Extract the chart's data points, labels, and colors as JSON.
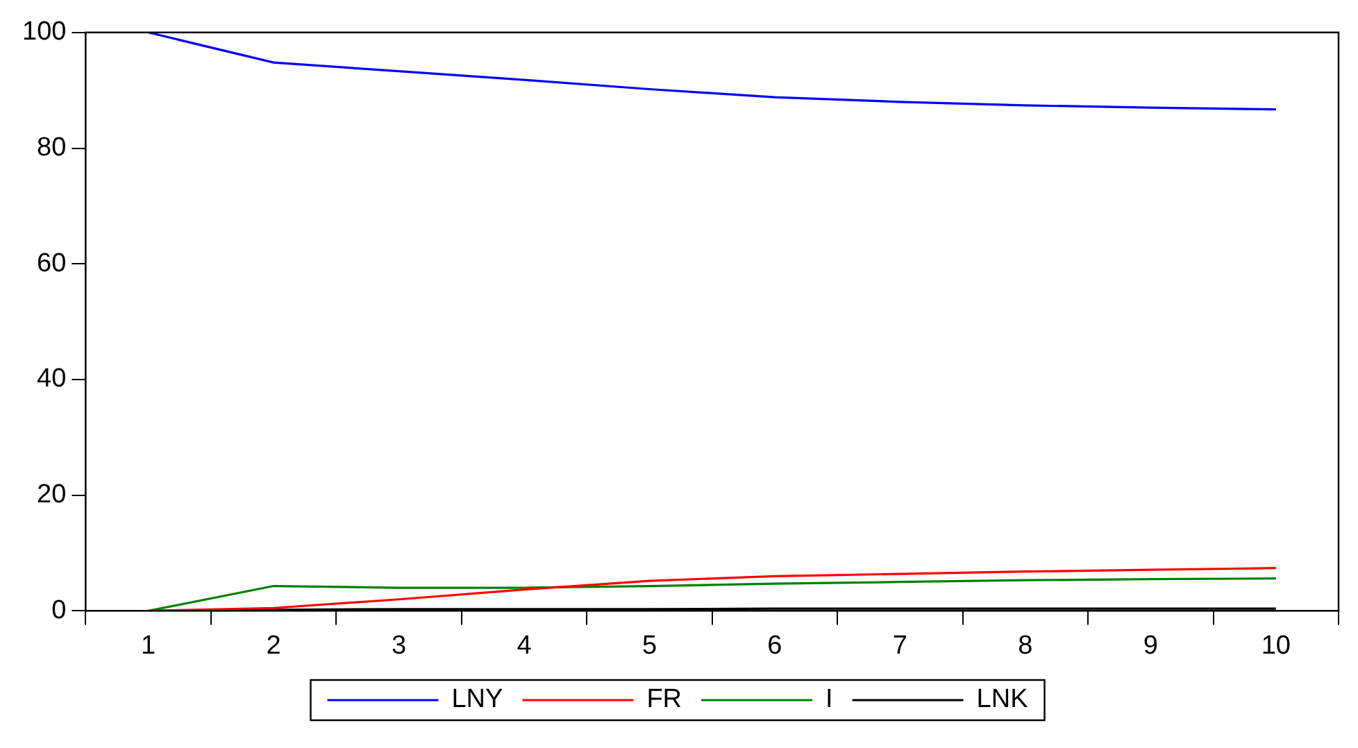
{
  "chart_data": {
    "type": "line",
    "categories": [
      "1",
      "2",
      "3",
      "4",
      "5",
      "6",
      "7",
      "8",
      "9",
      "10"
    ],
    "series": [
      {
        "name": "LNY",
        "color": "#0000ff",
        "values": [
          100,
          94.8,
          93.3,
          91.8,
          90.2,
          88.8,
          88.0,
          87.4,
          87.0,
          86.7
        ]
      },
      {
        "name": "FR",
        "color": "#ff0000",
        "values": [
          0,
          0.5,
          2.0,
          3.7,
          5.2,
          6.0,
          6.4,
          6.8,
          7.1,
          7.4
        ]
      },
      {
        "name": "I",
        "color": "#008000",
        "values": [
          0,
          4.3,
          4.0,
          4.0,
          4.3,
          4.7,
          5.0,
          5.3,
          5.5,
          5.6
        ]
      },
      {
        "name": "LNK",
        "color": "#000000",
        "values": [
          0,
          0.2,
          0.3,
          0.3,
          0.3,
          0.4,
          0.4,
          0.4,
          0.4,
          0.4
        ]
      }
    ],
    "ylim": [
      0,
      100
    ],
    "yticks": [
      0,
      20,
      40,
      60,
      80,
      100
    ],
    "grid": false,
    "legend": "bottom",
    "marker": "none",
    "line_style": "solid"
  }
}
